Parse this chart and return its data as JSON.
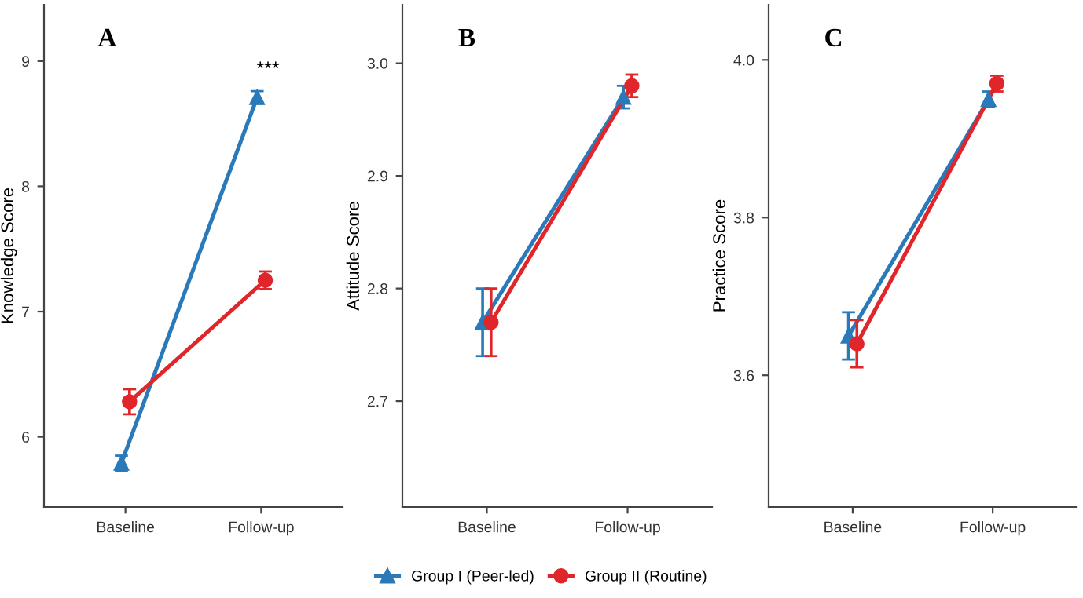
{
  "chart_data": [
    {
      "type": "line",
      "title": "A",
      "ylabel": "Knowledge Score",
      "categories": [
        "Baseline",
        "Follow-up"
      ],
      "ylim": [
        5.44,
        9.45
      ],
      "yticks": [
        6,
        7,
        8,
        9
      ],
      "grid": false,
      "legend": "bottom",
      "annotations": [
        "***"
      ],
      "series": [
        {
          "name": "Group I (Peer-led)",
          "color": "#2a7ab9",
          "marker": "triangle",
          "values": [
            5.79,
            8.71
          ],
          "errors": [
            [
              5.73,
              5.85
            ],
            [
              8.66,
              8.76
            ]
          ]
        },
        {
          "name": "Group II (Routine)",
          "color": "#e0262b",
          "marker": "circle",
          "values": [
            6.28,
            7.25
          ],
          "errors": [
            [
              6.18,
              6.38
            ],
            [
              7.18,
              7.32
            ]
          ]
        }
      ]
    },
    {
      "type": "line",
      "title": "B",
      "ylabel": "Attitude Score",
      "categories": [
        "Baseline",
        "Follow-up"
      ],
      "ylim": [
        2.606,
        3.052
      ],
      "yticks": [
        {
          "value": 2.7,
          "label": "2.7"
        },
        {
          "value": 2.8,
          "label": "2.8"
        },
        {
          "value": 2.9,
          "label": "2.9"
        },
        {
          "value": 3.0,
          "label": "3.0"
        }
      ],
      "grid": false,
      "series": [
        {
          "color": "#2a7ab9",
          "marker": "triangle",
          "values": [
            2.77,
            2.97
          ],
          "errors": [
            [
              2.74,
              2.8
            ],
            [
              2.96,
              2.98
            ]
          ]
        },
        {
          "color": "#e0262b",
          "marker": "circle",
          "values": [
            2.77,
            2.98
          ],
          "errors": [
            [
              2.74,
              2.8
            ],
            [
              2.97,
              2.99
            ]
          ]
        }
      ]
    },
    {
      "type": "line",
      "title": "C",
      "ylabel": "Practice Score",
      "categories": [
        "Baseline",
        "Follow-up"
      ],
      "ylim": [
        3.433,
        4.07
      ],
      "yticks": [
        {
          "value": 3.6,
          "label": "3.6"
        },
        {
          "value": 3.8,
          "label": "3.8"
        },
        {
          "value": 4.0,
          "label": "4.0"
        }
      ],
      "grid": false,
      "series": [
        {
          "color": "#2a7ab9",
          "marker": "triangle",
          "values": [
            3.65,
            3.95
          ],
          "errors": [
            [
              3.62,
              3.68
            ],
            [
              3.94,
              3.96
            ]
          ]
        },
        {
          "color": "#e0262b",
          "marker": "circle",
          "values": [
            3.64,
            3.97
          ],
          "errors": [
            [
              3.61,
              3.67
            ],
            [
              3.96,
              3.98
            ]
          ]
        }
      ]
    }
  ]
}
